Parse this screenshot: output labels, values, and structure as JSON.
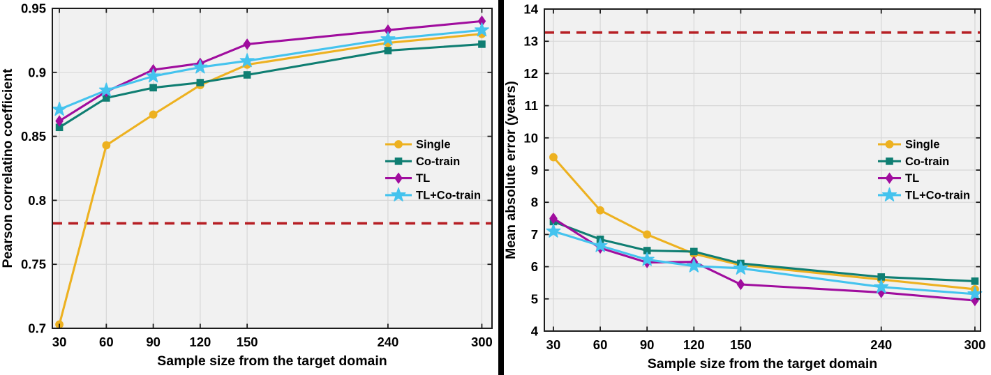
{
  "figure": {
    "background": "#ffffff",
    "plot_background": "#f1f1f1",
    "grid_color": "#d7d7d7",
    "axis_color": "#1c1c1c",
    "text_color": "#000000",
    "divider_color": "#000000",
    "baseline_color": "#b61f24"
  },
  "chart_data": [
    {
      "type": "line",
      "title": "",
      "xlabel": "Sample size from the target domain",
      "ylabel": "Pearson correlatino coefficient",
      "x": [
        30,
        60,
        90,
        120,
        150,
        240,
        300
      ],
      "xtick_labels": [
        "30",
        "60",
        "90",
        "120",
        "150",
        "240",
        "300"
      ],
      "xlim": [
        25.5,
        306.5
      ],
      "ylim": [
        0.7,
        0.95
      ],
      "yticks": [
        0.7,
        0.75,
        0.8,
        0.85,
        0.9,
        0.95
      ],
      "ytick_labels": [
        "0.7",
        "0.75",
        "0.8",
        "0.85",
        "0.9",
        "0.95"
      ],
      "grid": true,
      "legend_position": "right-center",
      "baseline": {
        "value": 0.782,
        "style": "dashed",
        "color": "#b61f24"
      },
      "series": [
        {
          "name": "Single",
          "color": "#EDB120",
          "marker": "circle",
          "values": [
            0.703,
            0.843,
            0.867,
            0.89,
            0.906,
            0.923,
            0.93
          ]
        },
        {
          "name": "Co-train",
          "color": "#0F7E72",
          "marker": "square",
          "values": [
            0.857,
            0.88,
            0.888,
            0.892,
            0.898,
            0.917,
            0.922
          ]
        },
        {
          "name": "TL",
          "color": "#A00D9E",
          "marker": "diamond",
          "values": [
            0.862,
            0.885,
            0.902,
            0.907,
            0.922,
            0.933,
            0.94
          ]
        },
        {
          "name": "TL+Co-train",
          "color": "#44C3EE",
          "marker": "star",
          "values": [
            0.871,
            0.886,
            0.897,
            0.904,
            0.909,
            0.926,
            0.933
          ]
        }
      ]
    },
    {
      "type": "line",
      "title": "",
      "xlabel": "Sample size from the target domain",
      "ylabel": "Mean absolute error (years)",
      "x": [
        30,
        60,
        90,
        120,
        150,
        240,
        300
      ],
      "xtick_labels": [
        "30",
        "60",
        "90",
        "120",
        "150",
        "240",
        "300"
      ],
      "xlim": [
        24.2,
        303.6
      ],
      "ylim": [
        4,
        14
      ],
      "yticks": [
        4,
        5,
        6,
        7,
        8,
        9,
        10,
        11,
        12,
        13,
        14
      ],
      "ytick_labels": [
        "4",
        "5",
        "6",
        "7",
        "8",
        "9",
        "10",
        "11",
        "12",
        "13",
        "14"
      ],
      "grid": true,
      "legend_position": "right-center",
      "baseline": {
        "value": 13.27,
        "style": "dashed",
        "color": "#b61f24"
      },
      "series": [
        {
          "name": "Single",
          "color": "#EDB120",
          "marker": "circle",
          "values": [
            9.4,
            7.75,
            7.0,
            6.4,
            6.05,
            5.6,
            5.3
          ]
        },
        {
          "name": "Co-train",
          "color": "#0F7E72",
          "marker": "square",
          "values": [
            7.4,
            6.85,
            6.5,
            6.47,
            6.1,
            5.68,
            5.55
          ]
        },
        {
          "name": "TL",
          "color": "#A00D9E",
          "marker": "diamond",
          "values": [
            7.5,
            6.58,
            6.13,
            6.15,
            5.45,
            5.2,
            4.95
          ]
        },
        {
          "name": "TL+Co-train",
          "color": "#44C3EE",
          "marker": "star",
          "values": [
            7.1,
            6.65,
            6.22,
            6.02,
            5.95,
            5.37,
            5.15
          ]
        }
      ]
    }
  ]
}
